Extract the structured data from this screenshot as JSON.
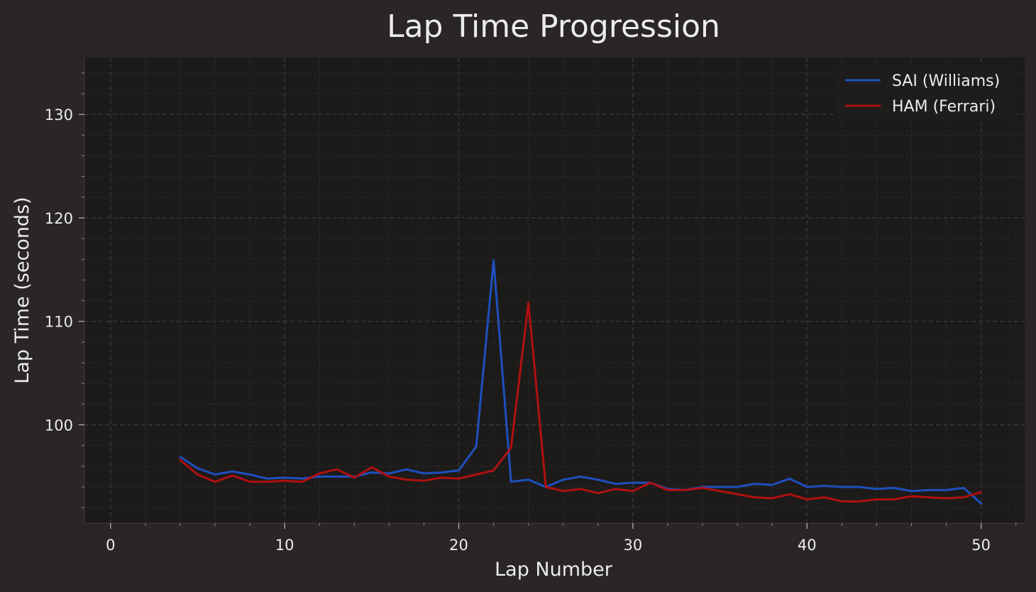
{
  "chart_data": {
    "type": "line",
    "title": "Lap Time Progression",
    "xlabel": "Lap Number",
    "ylabel": "Lap Time (seconds)",
    "xlim": [
      -1.5,
      52.5
    ],
    "ylim": [
      90.5,
      135.5
    ],
    "xticks": [
      0,
      10,
      20,
      30,
      40,
      50
    ],
    "yticks": [
      100,
      110,
      120,
      130
    ],
    "grid": true,
    "legend": "top-right",
    "series": [
      {
        "name": "SAI (Williams)",
        "color": "#1f4fbf",
        "x": [
          4,
          5,
          6,
          7,
          8,
          9,
          10,
          11,
          12,
          13,
          14,
          15,
          16,
          17,
          18,
          19,
          20,
          21,
          22,
          23,
          24,
          25,
          26,
          27,
          28,
          29,
          30,
          31,
          32,
          33,
          34,
          35,
          36,
          37,
          38,
          39,
          40,
          41,
          42,
          43,
          44,
          45,
          46,
          47,
          48,
          49,
          50
        ],
        "values": [
          96.9,
          95.8,
          95.2,
          95.5,
          95.2,
          94.8,
          94.9,
          94.8,
          95.0,
          95.0,
          95.0,
          95.4,
          95.3,
          95.7,
          95.3,
          95.4,
          95.6,
          97.9,
          115.9,
          94.5,
          94.7,
          94.0,
          94.7,
          95.0,
          94.7,
          94.3,
          94.4,
          94.4,
          93.8,
          93.7,
          94.0,
          94.0,
          94.0,
          94.3,
          94.2,
          94.8,
          94.0,
          94.1,
          94.0,
          94.0,
          93.8,
          93.9,
          93.6,
          93.7,
          93.7,
          93.9,
          92.4
        ]
      },
      {
        "name": "HAM (Ferrari)",
        "color": "#b01010",
        "x": [
          4,
          5,
          6,
          7,
          8,
          9,
          10,
          11,
          12,
          13,
          14,
          15,
          16,
          17,
          18,
          19,
          20,
          21,
          22,
          23,
          24,
          25,
          26,
          27,
          28,
          29,
          30,
          31,
          32,
          33,
          34,
          35,
          36,
          37,
          38,
          39,
          40,
          41,
          42,
          43,
          44,
          45,
          46,
          47,
          48,
          49,
          50
        ],
        "values": [
          96.6,
          95.2,
          94.5,
          95.1,
          94.5,
          94.5,
          94.6,
          94.5,
          95.3,
          95.7,
          94.9,
          95.9,
          95.0,
          94.7,
          94.6,
          94.9,
          94.8,
          95.2,
          95.6,
          97.8,
          111.8,
          94.0,
          93.6,
          93.8,
          93.4,
          93.8,
          93.6,
          94.4,
          93.7,
          93.7,
          93.9,
          93.6,
          93.3,
          93.0,
          92.9,
          93.3,
          92.8,
          93.0,
          92.6,
          92.6,
          92.8,
          92.8,
          93.1,
          93.0,
          92.9,
          93.0,
          93.5
        ]
      }
    ]
  }
}
